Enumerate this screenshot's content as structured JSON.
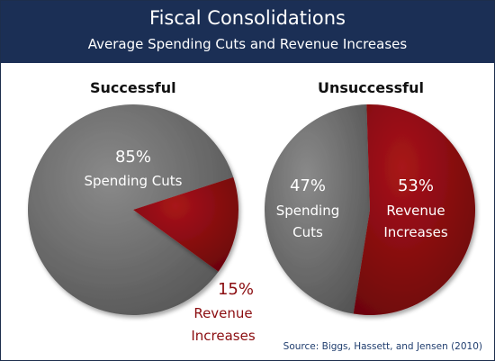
{
  "header": {
    "title": "Fiscal Consolidations",
    "subtitle": "Average Spending Cuts and Revenue Increases"
  },
  "source": "Source: Biggs, Hassett, and Jensen (2010)",
  "colors": {
    "spending": "#6e6e6e",
    "revenue": "#8b0d10",
    "header_bg": "#1b2f55"
  },
  "chart_data": [
    {
      "type": "pie",
      "title": "Successful",
      "slices": [
        {
          "label_pct": "85%",
          "label": "Spending Cuts",
          "value": 85
        },
        {
          "label_pct": "15%",
          "label": "Revenue Increases",
          "label_lines": [
            "Revenue",
            "Increases"
          ],
          "value": 15
        }
      ]
    },
    {
      "type": "pie",
      "title": "Unsuccessful",
      "slices": [
        {
          "label_pct": "47%",
          "label": "Spending Cuts",
          "label_lines": [
            "Spending",
            "Cuts"
          ],
          "value": 47
        },
        {
          "label_pct": "53%",
          "label": "Revenue Increases",
          "label_lines": [
            "Revenue",
            "Increases"
          ],
          "value": 53
        }
      ]
    }
  ]
}
